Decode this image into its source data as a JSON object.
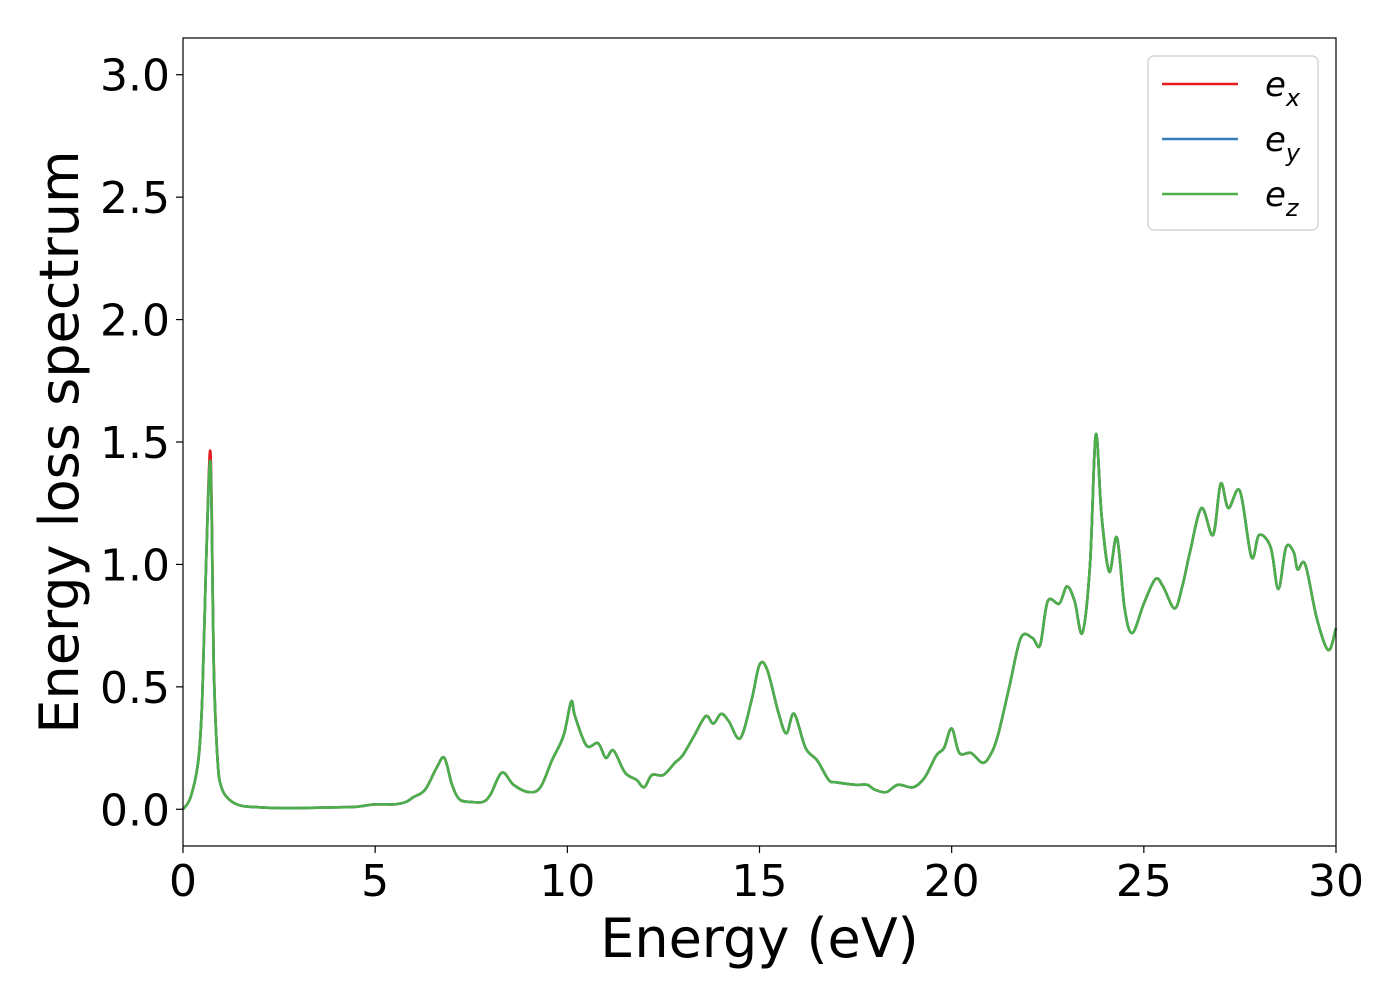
{
  "chart_data": {
    "type": "line",
    "xlabel": "Energy (eV)",
    "ylabel": "Energy loss spectrum",
    "xlim": [
      0,
      30
    ],
    "ylim": [
      -0.15,
      3.15
    ],
    "xticks": [
      0,
      5,
      10,
      15,
      20,
      25,
      30
    ],
    "xtick_labels": [
      "0",
      "5",
      "10",
      "15",
      "20",
      "25",
      "30"
    ],
    "yticks": [
      0.0,
      0.5,
      1.0,
      1.5,
      2.0,
      2.5,
      3.0
    ],
    "ytick_labels": [
      "0.0",
      "0.5",
      "1.0",
      "1.5",
      "2.0",
      "2.5",
      "3.0"
    ],
    "grid": false,
    "legend_position": "top-right",
    "x": [
      0,
      0.2,
      0.4,
      0.5,
      0.6,
      0.7,
      0.75,
      0.8,
      0.9,
      1.0,
      1.2,
      1.5,
      2.0,
      2.5,
      3.0,
      4.0,
      4.5,
      5.0,
      5.5,
      5.8,
      6.0,
      6.3,
      6.6,
      6.8,
      7.0,
      7.2,
      7.5,
      7.8,
      8.0,
      8.3,
      8.6,
      9.0,
      9.3,
      9.6,
      9.9,
      10.1,
      10.2,
      10.5,
      10.8,
      11.0,
      11.2,
      11.5,
      11.8,
      12.0,
      12.2,
      12.5,
      12.8,
      13.0,
      13.3,
      13.6,
      13.8,
      14.0,
      14.2,
      14.5,
      14.8,
      15.0,
      15.2,
      15.5,
      15.7,
      15.9,
      16.2,
      16.5,
      16.8,
      17.0,
      17.5,
      17.8,
      18.0,
      18.3,
      18.6,
      19.0,
      19.3,
      19.6,
      19.8,
      20.0,
      20.2,
      20.5,
      20.8,
      21.0,
      21.2,
      21.5,
      21.8,
      22.1,
      22.3,
      22.5,
      22.8,
      23.0,
      23.2,
      23.4,
      23.6,
      23.75,
      23.9,
      24.1,
      24.3,
      24.5,
      24.7,
      25.0,
      25.3,
      25.5,
      25.8,
      26.0,
      26.2,
      26.5,
      26.8,
      27.0,
      27.2,
      27.5,
      27.8,
      28.0,
      28.3,
      28.5,
      28.7,
      28.9,
      29.0,
      29.2,
      29.5,
      29.8,
      30.0
    ],
    "series": [
      {
        "name": "e_x",
        "label_main": "e",
        "label_sub": "x",
        "color": "#e41a1c",
        "values": [
          0.0,
          0.05,
          0.2,
          0.45,
          1.0,
          1.46,
          1.2,
          0.6,
          0.2,
          0.09,
          0.04,
          0.015,
          0.008,
          0.005,
          0.005,
          0.008,
          0.01,
          0.02,
          0.02,
          0.03,
          0.05,
          0.08,
          0.17,
          0.21,
          0.1,
          0.04,
          0.03,
          0.03,
          0.06,
          0.15,
          0.1,
          0.07,
          0.09,
          0.2,
          0.3,
          0.44,
          0.38,
          0.26,
          0.27,
          0.21,
          0.24,
          0.15,
          0.12,
          0.09,
          0.14,
          0.14,
          0.19,
          0.22,
          0.3,
          0.38,
          0.35,
          0.39,
          0.36,
          0.29,
          0.45,
          0.59,
          0.57,
          0.39,
          0.31,
          0.39,
          0.25,
          0.2,
          0.12,
          0.11,
          0.1,
          0.1,
          0.08,
          0.07,
          0.1,
          0.09,
          0.13,
          0.22,
          0.25,
          0.33,
          0.23,
          0.23,
          0.19,
          0.22,
          0.3,
          0.5,
          0.7,
          0.7,
          0.67,
          0.85,
          0.84,
          0.91,
          0.85,
          0.72,
          1.0,
          1.53,
          1.2,
          0.97,
          1.11,
          0.82,
          0.72,
          0.84,
          0.94,
          0.91,
          0.82,
          0.91,
          1.05,
          1.23,
          1.12,
          1.33,
          1.23,
          1.3,
          1.03,
          1.12,
          1.07,
          0.9,
          1.07,
          1.05,
          0.98,
          1.0,
          0.78,
          0.65,
          0.74
        ]
      },
      {
        "name": "e_y",
        "label_main": "e",
        "label_sub": "y",
        "color": "#377eb8",
        "values": [
          0.0,
          0.05,
          0.2,
          0.45,
          1.0,
          1.42,
          1.16,
          0.58,
          0.2,
          0.09,
          0.04,
          0.015,
          0.008,
          0.005,
          0.005,
          0.008,
          0.01,
          0.02,
          0.02,
          0.03,
          0.05,
          0.08,
          0.17,
          0.21,
          0.1,
          0.04,
          0.03,
          0.03,
          0.06,
          0.15,
          0.1,
          0.07,
          0.09,
          0.2,
          0.3,
          0.44,
          0.38,
          0.26,
          0.27,
          0.21,
          0.24,
          0.15,
          0.12,
          0.09,
          0.14,
          0.14,
          0.19,
          0.22,
          0.3,
          0.38,
          0.35,
          0.39,
          0.36,
          0.29,
          0.45,
          0.59,
          0.57,
          0.39,
          0.31,
          0.39,
          0.25,
          0.2,
          0.12,
          0.11,
          0.1,
          0.1,
          0.08,
          0.07,
          0.1,
          0.09,
          0.13,
          0.22,
          0.25,
          0.33,
          0.23,
          0.23,
          0.19,
          0.22,
          0.3,
          0.5,
          0.7,
          0.7,
          0.67,
          0.85,
          0.84,
          0.91,
          0.85,
          0.72,
          1.0,
          1.53,
          1.2,
          0.97,
          1.11,
          0.82,
          0.72,
          0.84,
          0.94,
          0.91,
          0.82,
          0.91,
          1.05,
          1.23,
          1.12,
          1.33,
          1.23,
          1.3,
          1.03,
          1.12,
          1.07,
          0.9,
          1.07,
          1.05,
          0.98,
          1.0,
          0.78,
          0.65,
          0.74
        ]
      },
      {
        "name": "e_z",
        "label_main": "e",
        "label_sub": "z",
        "color": "#4daf4a",
        "values": [
          0.0,
          0.05,
          0.2,
          0.45,
          1.0,
          1.42,
          1.16,
          0.58,
          0.2,
          0.09,
          0.04,
          0.015,
          0.008,
          0.005,
          0.005,
          0.008,
          0.01,
          0.02,
          0.02,
          0.03,
          0.05,
          0.08,
          0.17,
          0.21,
          0.1,
          0.04,
          0.03,
          0.03,
          0.06,
          0.15,
          0.1,
          0.07,
          0.09,
          0.2,
          0.3,
          0.44,
          0.38,
          0.26,
          0.27,
          0.21,
          0.24,
          0.15,
          0.12,
          0.09,
          0.14,
          0.14,
          0.19,
          0.22,
          0.3,
          0.38,
          0.35,
          0.39,
          0.36,
          0.29,
          0.45,
          0.59,
          0.57,
          0.39,
          0.31,
          0.39,
          0.25,
          0.2,
          0.12,
          0.11,
          0.1,
          0.1,
          0.08,
          0.07,
          0.1,
          0.09,
          0.13,
          0.22,
          0.25,
          0.33,
          0.23,
          0.23,
          0.19,
          0.22,
          0.3,
          0.5,
          0.7,
          0.7,
          0.67,
          0.85,
          0.84,
          0.91,
          0.85,
          0.72,
          1.0,
          1.53,
          1.2,
          0.97,
          1.11,
          0.82,
          0.72,
          0.84,
          0.94,
          0.91,
          0.82,
          0.91,
          1.05,
          1.23,
          1.12,
          1.33,
          1.23,
          1.3,
          1.03,
          1.12,
          1.07,
          0.9,
          1.07,
          1.05,
          0.98,
          1.0,
          0.78,
          0.65,
          0.74
        ]
      }
    ]
  }
}
